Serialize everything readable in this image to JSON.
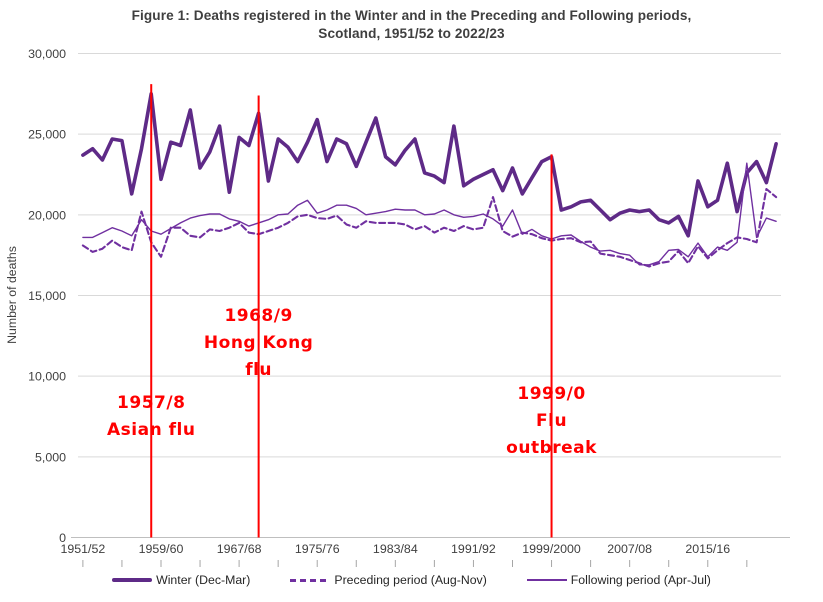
{
  "title": {
    "line1": "Figure 1: Deaths registered in the Winter and in the Preceding and Following periods,",
    "line2": "Scotland, 1951/52 to 2022/23"
  },
  "y_axis": {
    "title": "Number of deaths",
    "tick_labels": [
      "0",
      "5,000",
      "10,000",
      "15,000",
      "20,000",
      "25,000",
      "30,000"
    ],
    "min": 0,
    "max": 30000,
    "step": 5000
  },
  "x_axis": {
    "tick_labels": [
      "1951/52",
      "1959/60",
      "1967/68",
      "1975/76",
      "1983/84",
      "1991/92",
      "1999/2000",
      "2007/08",
      "2015/16"
    ]
  },
  "legend": [
    {
      "label": "Winter (Dec-Mar)",
      "style": "thick"
    },
    {
      "label": "Preceding period (Aug-Nov)",
      "style": "dashed"
    },
    {
      "label": "Following period (Apr-Jul)",
      "style": "thin"
    }
  ],
  "colors": {
    "winter_line": "#5e2a87",
    "preceding_line": "#7030a0",
    "following_line": "#7030a0",
    "event_line": "#ff0000",
    "annotation_text": "#ff0000",
    "gridline": "#d9d9d9",
    "axis_line": "#bfbfbf",
    "tick_mark": "#a6a6a6",
    "title_text": "#3f3f3f",
    "axis_text": "#3f3f3f",
    "legend_text": "#262626",
    "background": "#ffffff"
  },
  "chart_data": {
    "type": "line",
    "title": "Figure 1: Deaths registered in the Winter and in the Preceding and Following periods, Scotland, 1951/52 to 2022/23",
    "xlabel": "",
    "ylabel": "Number of deaths",
    "ylim": [
      0,
      30000
    ],
    "grid": "horizontal",
    "legend_position": "bottom",
    "x": [
      "1951/52",
      "1952/53",
      "1953/54",
      "1954/55",
      "1955/56",
      "1956/57",
      "1957/58",
      "1958/59",
      "1959/60",
      "1960/61",
      "1961/62",
      "1962/63",
      "1963/64",
      "1964/65",
      "1965/66",
      "1966/67",
      "1967/68",
      "1968/69",
      "1969/70",
      "1970/71",
      "1971/72",
      "1972/73",
      "1973/74",
      "1974/75",
      "1975/76",
      "1976/77",
      "1977/78",
      "1978/79",
      "1979/80",
      "1980/81",
      "1981/82",
      "1982/83",
      "1983/84",
      "1984/85",
      "1985/86",
      "1986/87",
      "1987/88",
      "1988/89",
      "1989/90",
      "1990/91",
      "1991/92",
      "1992/93",
      "1993/94",
      "1994/95",
      "1995/96",
      "1996/97",
      "1997/98",
      "1998/99",
      "1999/2000",
      "2000/01",
      "2001/02",
      "2002/03",
      "2003/04",
      "2004/05",
      "2005/06",
      "2006/07",
      "2007/08",
      "2008/09",
      "2009/10",
      "2010/11",
      "2011/12",
      "2012/13",
      "2013/14",
      "2014/15",
      "2015/16",
      "2016/17",
      "2017/18",
      "2018/19",
      "2019/20",
      "2020/21",
      "2021/22",
      "2022/23"
    ],
    "series": [
      {
        "name": "Winter (Dec-Mar)",
        "style": "thick",
        "values": [
          23700,
          24100,
          23400,
          24700,
          24600,
          21300,
          24100,
          27500,
          22200,
          24500,
          24300,
          26500,
          22900,
          23900,
          25500,
          21400,
          24800,
          24300,
          26300,
          22100,
          24700,
          24200,
          23300,
          24500,
          25900,
          23300,
          24700,
          24400,
          23000,
          24500,
          26000,
          23600,
          23100,
          24000,
          24700,
          22600,
          22400,
          22000,
          25500,
          21800,
          22200,
          22500,
          22800,
          21500,
          22900,
          21300,
          22300,
          23300,
          23600,
          20300,
          20500,
          20800,
          20900,
          20300,
          19700,
          20100,
          20300,
          20200,
          20300,
          19700,
          19500,
          19900,
          18700,
          22100,
          20500,
          20900,
          23200,
          20200,
          22600,
          23300,
          22000,
          24400
        ]
      },
      {
        "name": "Preceding period (Aug-Nov)",
        "style": "dashed",
        "values": [
          18100,
          17700,
          17900,
          18400,
          18000,
          17800,
          20200,
          18300,
          17400,
          19200,
          19200,
          18700,
          18600,
          19100,
          19000,
          19200,
          19500,
          18900,
          18800,
          19000,
          19200,
          19500,
          19900,
          20000,
          19800,
          19750,
          19950,
          19400,
          19200,
          19600,
          19500,
          19500,
          19500,
          19400,
          19100,
          19300,
          18900,
          19200,
          19000,
          19300,
          19100,
          19200,
          21100,
          19000,
          18650,
          18900,
          18800,
          18550,
          18400,
          18500,
          18550,
          18300,
          18350,
          17600,
          17500,
          17400,
          17200,
          17000,
          16800,
          17000,
          17100,
          17750,
          17000,
          18050,
          17300,
          17800,
          18250,
          18600,
          18500,
          18300,
          21600,
          21100
        ]
      },
      {
        "name": "Following period (Apr-Jul)",
        "style": "thin",
        "values": [
          18600,
          18600,
          18900,
          19200,
          19000,
          18700,
          19700,
          19000,
          18800,
          19150,
          19500,
          19800,
          19950,
          20050,
          20050,
          19750,
          19600,
          19300,
          19500,
          19700,
          20000,
          20050,
          20600,
          20900,
          20100,
          20300,
          20600,
          20600,
          20400,
          20000,
          20100,
          20200,
          20350,
          20300,
          20300,
          20000,
          20050,
          20300,
          20000,
          19850,
          19900,
          20050,
          19750,
          19300,
          20300,
          18800,
          19100,
          18700,
          18500,
          18700,
          18750,
          18350,
          18000,
          17750,
          17800,
          17600,
          17500,
          16900,
          16900,
          17100,
          17800,
          17850,
          17400,
          18250,
          17400,
          18000,
          17800,
          18300,
          23200,
          18600,
          19800,
          19600
        ]
      }
    ],
    "event_lines": [
      {
        "lines": [
          "1957/8",
          "Asian flu"
        ],
        "x_index": 7,
        "line_top_value": 28100
      },
      {
        "lines": [
          "1968/9",
          "Hong Kong",
          "flu"
        ],
        "x_index": 18,
        "line_top_value": 27400
      },
      {
        "lines": [
          "1999/0",
          "Flu",
          "outbreak"
        ],
        "x_index": 48,
        "line_top_value": 23750
      }
    ]
  }
}
